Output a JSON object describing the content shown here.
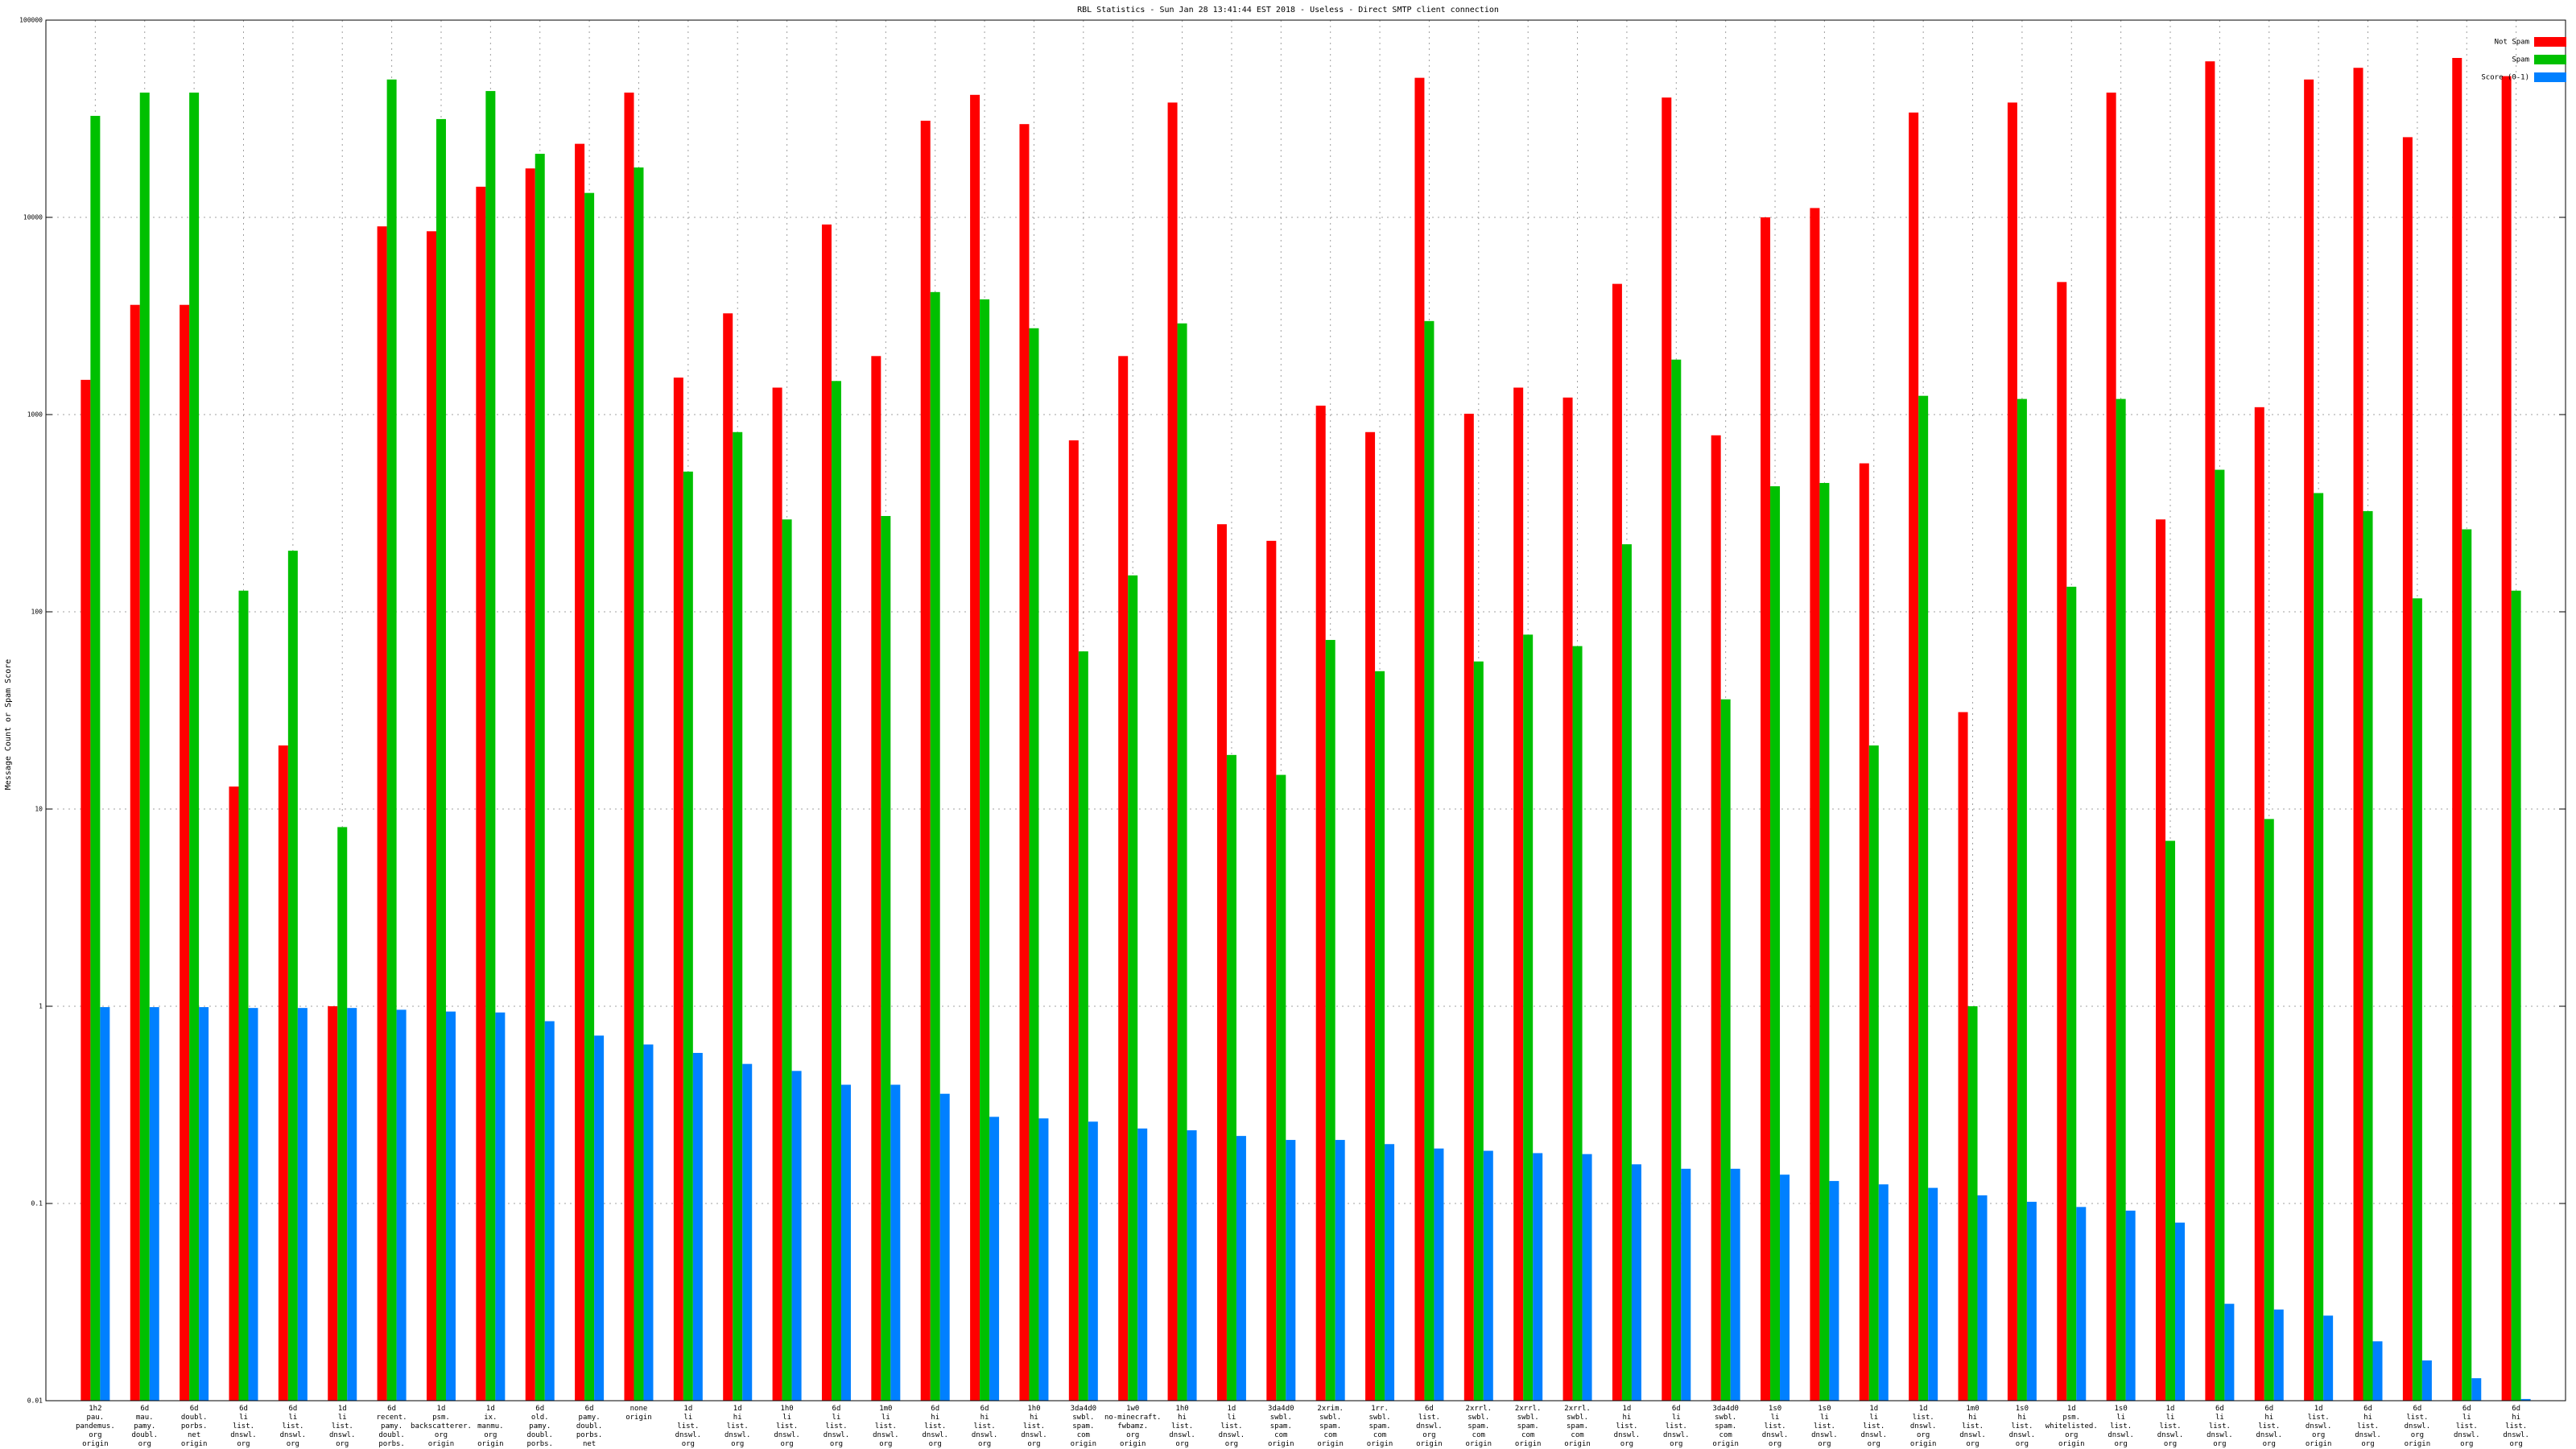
{
  "chart_data": {
    "type": "bar",
    "title": "RBL Statistics - Sun Jan 28 13:41:44 EST 2018 - Useless - Direct SMTP client connection",
    "y_label": "Message Count or Spam Score",
    "log_y": true,
    "grid": true,
    "legend": "upper right",
    "ylim": [
      0.01,
      100000
    ],
    "yticks": [
      0.01,
      0.1,
      1,
      10,
      100,
      1000,
      10000,
      100000
    ],
    "categories": [
      "1h2\npau.\npandemus.\norg\norigin",
      "6d\nmau.\npamy.\ndoubl.\norg\norigin",
      "6d\ndoubl.\nporbs.\nnet\norigin",
      "6d\nli\nlist.\ndnswl.\norg\norigin",
      "6d\nli\nlist.\ndnswl.\norg\norigin",
      "1d\nli\nlist.\ndnswl.\norg\norigin",
      "6d\nrecent.\npamy.\ndoubl.\nporbs.\nnet\norigin",
      "1d\npsm.\nbackscatterer.\norg\norigin",
      "1d\nix.\nmanmu.\norg\norigin",
      "6d\nold.\npamy.\ndoubl.\nporbs.\nnet\norigin",
      "6d\npamy.\ndoubl.\nporbs.\nnet\norigin",
      "none\norigin",
      "1d\nli\nlist.\ndnswl.\norg\norigin",
      "1d\nhi\nlist.\ndnswl.\norg\norigin",
      "1h0\nli\nlist.\ndnswl.\norg\norigin",
      "6d\nli\nlist.\ndnswl.\norg\norigin",
      "1m0\nli\nlist.\ndnswl.\norg\norigin",
      "6d\nhi\nlist.\ndnswl.\norg\norigin",
      "6d\nhi\nlist.\ndnswl.\norg\norigin",
      "1h0\nhi\nlist.\ndnswl.\norg\norigin",
      "3da4d0\nswbl.\nspam.\ncom\norigin",
      "1w0\nno-minecraft.\nfwbamz.\norg\norigin",
      "1h0\nhi\nlist.\ndnswl.\norg\norigin",
      "1d\nli\nlist.\ndnswl.\norg\norigin",
      "3da4d0\nswbl.\nspam.\ncom\norigin",
      "2xrim.\nswbl.\nspam.\ncom\norigin",
      "1rr.\nswbl.\nspam.\ncom\norigin",
      "6d\nlist.\ndnswl.\norg\norigin",
      "2xrrl.\nswbl.\nspam.\ncom\norigin",
      "2xrrl.\nswbl.\nspam.\ncom\norigin",
      "2xrrl.\nswbl.\nspam.\ncom\norigin",
      "1d\nhi\nlist.\ndnswl.\norg\norigin",
      "6d\nli\nlist.\ndnswl.\norg\norigin",
      "3da4d0\nswbl.\nspam.\ncom\norigin",
      "1s0\nli\nlist.\ndnswl.\norg\norigin",
      "1s0\nli\nlist.\ndnswl.\norg\norigin",
      "1d\nli\nlist.\ndnswl.\norg\norigin",
      "1d\nlist.\ndnswl.\norg\norigin",
      "1m0\nhi\nlist.\ndnswl.\norg\norigin",
      "1s0\nhi\nlist.\ndnswl.\norg\norigin",
      "1d\npsm.\nwhitelisted.\norg\norigin",
      "1s0\nli\nlist.\ndnswl.\norg\norigin",
      "1d\nli\nlist.\ndnswl.\norg\norigin",
      "6d\nli\nlist.\ndnswl.\norg\norigin",
      "6d\nhi\nlist.\ndnswl.\norg\norigin",
      "1d\nlist.\ndnswl.\norg\norigin",
      "6d\nhi\nlist.\ndnswl.\norg\norigin",
      "6d\nlist.\ndnswl.\norg\norigin",
      "6d\nli\nlist.\ndnswl.\norg\norigin",
      "6d\nhi\nlist.\ndnswl.\norg\norigin"
    ],
    "series": [
      {
        "name": "Not Spam",
        "color": "#ff0000",
        "values": [
          1500,
          3600,
          3600,
          13,
          21,
          1,
          9000,
          8500,
          14300,
          17700,
          23600,
          42900,
          1540,
          3260,
          1370,
          9200,
          1980,
          30900,
          41800,
          29700,
          740,
          1980,
          38200,
          278,
          229,
          1110,
          815,
          51000,
          1010,
          1370,
          1220,
          4600,
          40500,
          785,
          10000,
          11150,
          566,
          34000,
          31,
          38200,
          4700,
          42900,
          294,
          61800,
          1090,
          50000,
          57300,
          25500,
          64300,
          52000
        ]
      },
      {
        "name": "Spam",
        "color": "#00c000",
        "values": [
          32700,
          42900,
          42900,
          128,
          204,
          8.1,
          50000,
          31500,
          43700,
          21000,
          13300,
          17900,
          514,
          815,
          294,
          1480,
          306,
          4180,
          3840,
          2740,
          63,
          153,
          2900,
          18.8,
          14.9,
          72,
          50,
          2980,
          56,
          76.6,
          67,
          220,
          1900,
          36,
          433,
          450,
          21,
          1245,
          1,
          1200,
          134,
          1200,
          6.9,
          525,
          8.9,
          400,
          324,
          117,
          262,
          128
        ]
      },
      {
        "name": "Score (0-1)",
        "color": "#0080ff",
        "values": [
          0.99,
          0.99,
          0.99,
          0.98,
          0.98,
          0.98,
          0.96,
          0.94,
          0.93,
          0.84,
          0.71,
          0.64,
          0.58,
          0.51,
          0.47,
          0.4,
          0.4,
          0.36,
          0.275,
          0.27,
          0.26,
          0.24,
          0.235,
          0.22,
          0.21,
          0.21,
          0.2,
          0.19,
          0.185,
          0.18,
          0.178,
          0.158,
          0.15,
          0.15,
          0.14,
          0.13,
          0.125,
          0.12,
          0.11,
          0.102,
          0.096,
          0.092,
          0.08,
          0.031,
          0.029,
          0.027,
          0.02,
          0.016,
          0.013,
          0.0102
        ]
      }
    ]
  }
}
